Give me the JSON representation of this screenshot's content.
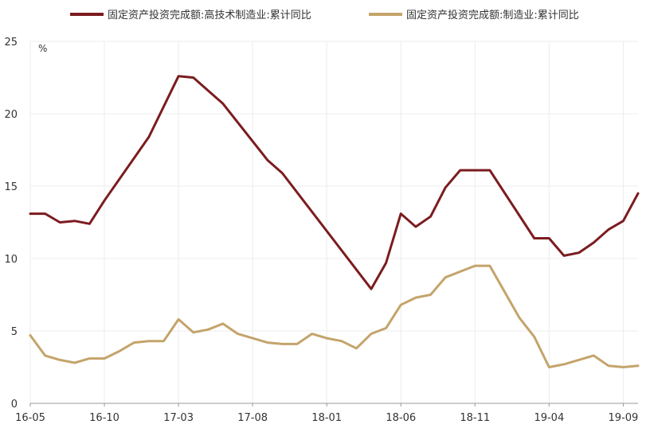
{
  "chart_data": {
    "type": "line",
    "unit_label": "%",
    "ylim": [
      0,
      25
    ],
    "yticks": [
      "0",
      "5",
      "10",
      "15",
      "20",
      "25"
    ],
    "x": [
      "16-05",
      "16-06",
      "16-07",
      "16-08",
      "16-09",
      "16-10",
      "16-11",
      "16-12",
      "17-01",
      "17-02",
      "17-03",
      "17-04",
      "17-05",
      "17-06",
      "17-07",
      "17-08",
      "17-09",
      "17-10",
      "17-11",
      "17-12",
      "18-01",
      "18-02",
      "18-03",
      "18-04",
      "18-05",
      "18-06",
      "18-07",
      "18-08",
      "18-09",
      "18-10",
      "18-11",
      "18-12",
      "19-01",
      "19-02",
      "19-03",
      "19-04",
      "19-05",
      "19-06",
      "19-07",
      "19-08",
      "19-09",
      "19-10"
    ],
    "xtick_labels": [
      "16-05",
      "16-10",
      "17-03",
      "17-08",
      "18-01",
      "18-06",
      "18-11",
      "19-04",
      "19-09"
    ],
    "grid": true,
    "legend_position": "top",
    "series": [
      {
        "name": "固定资产投资完成额:高技术制造业:累计同比",
        "color": "#7b1c1f",
        "values": [
          13.1,
          13.1,
          12.5,
          12.6,
          12.4,
          14.0,
          null,
          null,
          18.4,
          null,
          22.6,
          22.5,
          null,
          20.7,
          19.4,
          null,
          16.8,
          15.9,
          null,
          null,
          null,
          null,
          null,
          7.9,
          9.7,
          13.1,
          12.2,
          12.9,
          14.9,
          16.1,
          16.1,
          16.1,
          null,
          null,
          11.4,
          11.4,
          10.2,
          10.4,
          11.1,
          12.0,
          12.6,
          14.5
        ]
      },
      {
        "name": "固定资产投资完成额:制造业:累计同比",
        "color": "#c4a46b",
        "values": [
          4.7,
          3.3,
          3.0,
          2.8,
          3.1,
          3.1,
          3.6,
          4.2,
          4.3,
          4.3,
          5.8,
          4.9,
          5.1,
          5.5,
          4.8,
          4.5,
          4.2,
          4.1,
          4.1,
          4.8,
          4.5,
          4.3,
          3.8,
          4.8,
          5.2,
          6.8,
          7.3,
          7.5,
          8.7,
          9.1,
          9.5,
          9.5,
          7.7,
          5.9,
          4.6,
          2.5,
          2.7,
          3.0,
          3.3,
          2.6,
          2.5,
          2.6
        ]
      }
    ]
  }
}
